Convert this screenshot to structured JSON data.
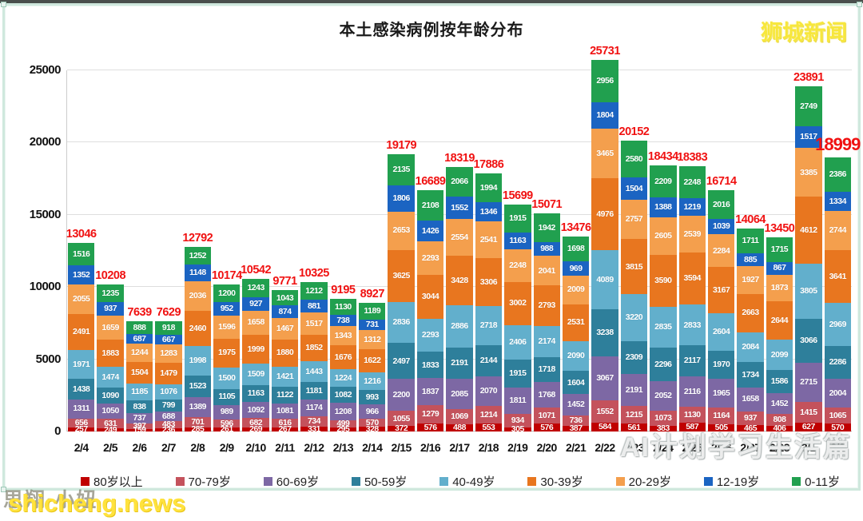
{
  "page": {
    "title": "本土感染病例按年龄分布"
  },
  "watermarks": {
    "top_right": "狮城新闻",
    "bottom_left_url": "shicheng.news",
    "bottom_left_faint": "思翔·小妞",
    "bottom_right": "AI计划学习生活篇"
  },
  "chart_data": {
    "type": "bar",
    "stacked": true,
    "title": "本土感染病例按年龄分布",
    "xlabel": "",
    "ylabel": "",
    "ylim": [
      0,
      25000
    ],
    "yticks": [
      0,
      5000,
      10000,
      15000,
      20000,
      25000
    ],
    "grid": true,
    "legend_position": "bottom",
    "total_label_color": "#f01212",
    "categories": [
      "2/4",
      "2/5",
      "2/6",
      "2/7",
      "2/8",
      "2/9",
      "2/10",
      "2/11",
      "2/12",
      "2/13",
      "2/14",
      "2/15",
      "2/16",
      "2/17",
      "2/18",
      "2/19",
      "2/20",
      "2/21",
      "2/22",
      "2/23",
      "2/24",
      "2/25",
      "2/26",
      "2/27",
      "2/28",
      "3/1",
      "3/2"
    ],
    "totals": [
      13046,
      10208,
      7639,
      7629,
      12792,
      10174,
      10542,
      9771,
      10325,
      9195,
      8927,
      19179,
      16689,
      18319,
      17886,
      15699,
      15071,
      13476,
      25731,
      20152,
      18434,
      18383,
      16714,
      14064,
      13450,
      23891,
      18999
    ],
    "series": [
      {
        "name": "80岁以上",
        "color": "#c00000",
        "values": [
          257,
          249,
          159,
          236,
          285,
          261,
          269,
          267,
          331,
          295,
          328,
          372,
          576,
          488,
          553,
          305,
          576,
          387,
          584,
          561,
          383,
          587,
          505,
          465,
          406,
          627,
          570
        ]
      },
      {
        "name": "70-79岁",
        "color": "#c4525c",
        "values": [
          656,
          631,
          397,
          483,
          701,
          596,
          682,
          616,
          734,
          499,
          570,
          1055,
          1279,
          1069,
          1214,
          934,
          1071,
          736,
          1552,
          1215,
          1073,
          1130,
          1164,
          937,
          808,
          1415,
          1065
        ]
      },
      {
        "name": "60-69岁",
        "color": "#7d68a4",
        "values": [
          1311,
          1050,
          737,
          688,
          1389,
          989,
          1092,
          1081,
          1174,
          1208,
          966,
          2200,
          1837,
          2085,
          2070,
          1811,
          1768,
          1452,
          3067,
          2191,
          2052,
          2116,
          1965,
          1658,
          1452,
          2715,
          2004
        ]
      },
      {
        "name": "50-59岁",
        "color": "#2e7f9b",
        "values": [
          1438,
          1090,
          838,
          799,
          1523,
          1105,
          1163,
          1122,
          1181,
          1082,
          993,
          2497,
          1833,
          2191,
          2144,
          1915,
          1718,
          1604,
          3238,
          2309,
          2296,
          2117,
          1970,
          1734,
          1586,
          3066,
          2286
        ]
      },
      {
        "name": "40-49岁",
        "color": "#62afcc",
        "values": [
          1971,
          1474,
          1185,
          1076,
          1998,
          1500,
          1509,
          1421,
          1443,
          1224,
          1216,
          2836,
          2293,
          2886,
          2718,
          2406,
          2174,
          2090,
          4089,
          3220,
          2835,
          2833,
          2604,
          2084,
          2099,
          3805,
          2969
        ]
      },
      {
        "name": "30-39岁",
        "color": "#e8761f",
        "values": [
          2491,
          1883,
          1504,
          1479,
          2460,
          1975,
          1999,
          1880,
          1852,
          1676,
          1622,
          3625,
          3044,
          3428,
          3306,
          3002,
          2793,
          2531,
          4976,
          3815,
          3590,
          3594,
          3167,
          2663,
          2644,
          4612,
          3641
        ]
      },
      {
        "name": "20-29岁",
        "color": "#f49f4d",
        "values": [
          2055,
          1659,
          1244,
          1283,
          2036,
          1596,
          1658,
          1467,
          1517,
          1343,
          1312,
          2653,
          2293,
          2554,
          2541,
          2248,
          2041,
          2009,
          3465,
          2757,
          2605,
          2539,
          2284,
          1927,
          1873,
          3385,
          2744
        ]
      },
      {
        "name": "12-19岁",
        "color": "#1b64c2",
        "values": [
          1352,
          937,
          687,
          667,
          1148,
          952,
          927,
          874,
          881,
          738,
          731,
          1806,
          1426,
          1552,
          1346,
          1163,
          988,
          969,
          1804,
          1504,
          1388,
          1219,
          1039,
          885,
          867,
          1517,
          1334
        ]
      },
      {
        "name": "0-11岁",
        "color": "#21a04f",
        "values": [
          1516,
          1235,
          888,
          918,
          1252,
          1200,
          1243,
          1043,
          1212,
          1130,
          1189,
          2135,
          2108,
          2066,
          1994,
          1915,
          1942,
          1698,
          2956,
          2580,
          2209,
          2248,
          2016,
          1711,
          1715,
          2749,
          2386
        ]
      }
    ]
  }
}
